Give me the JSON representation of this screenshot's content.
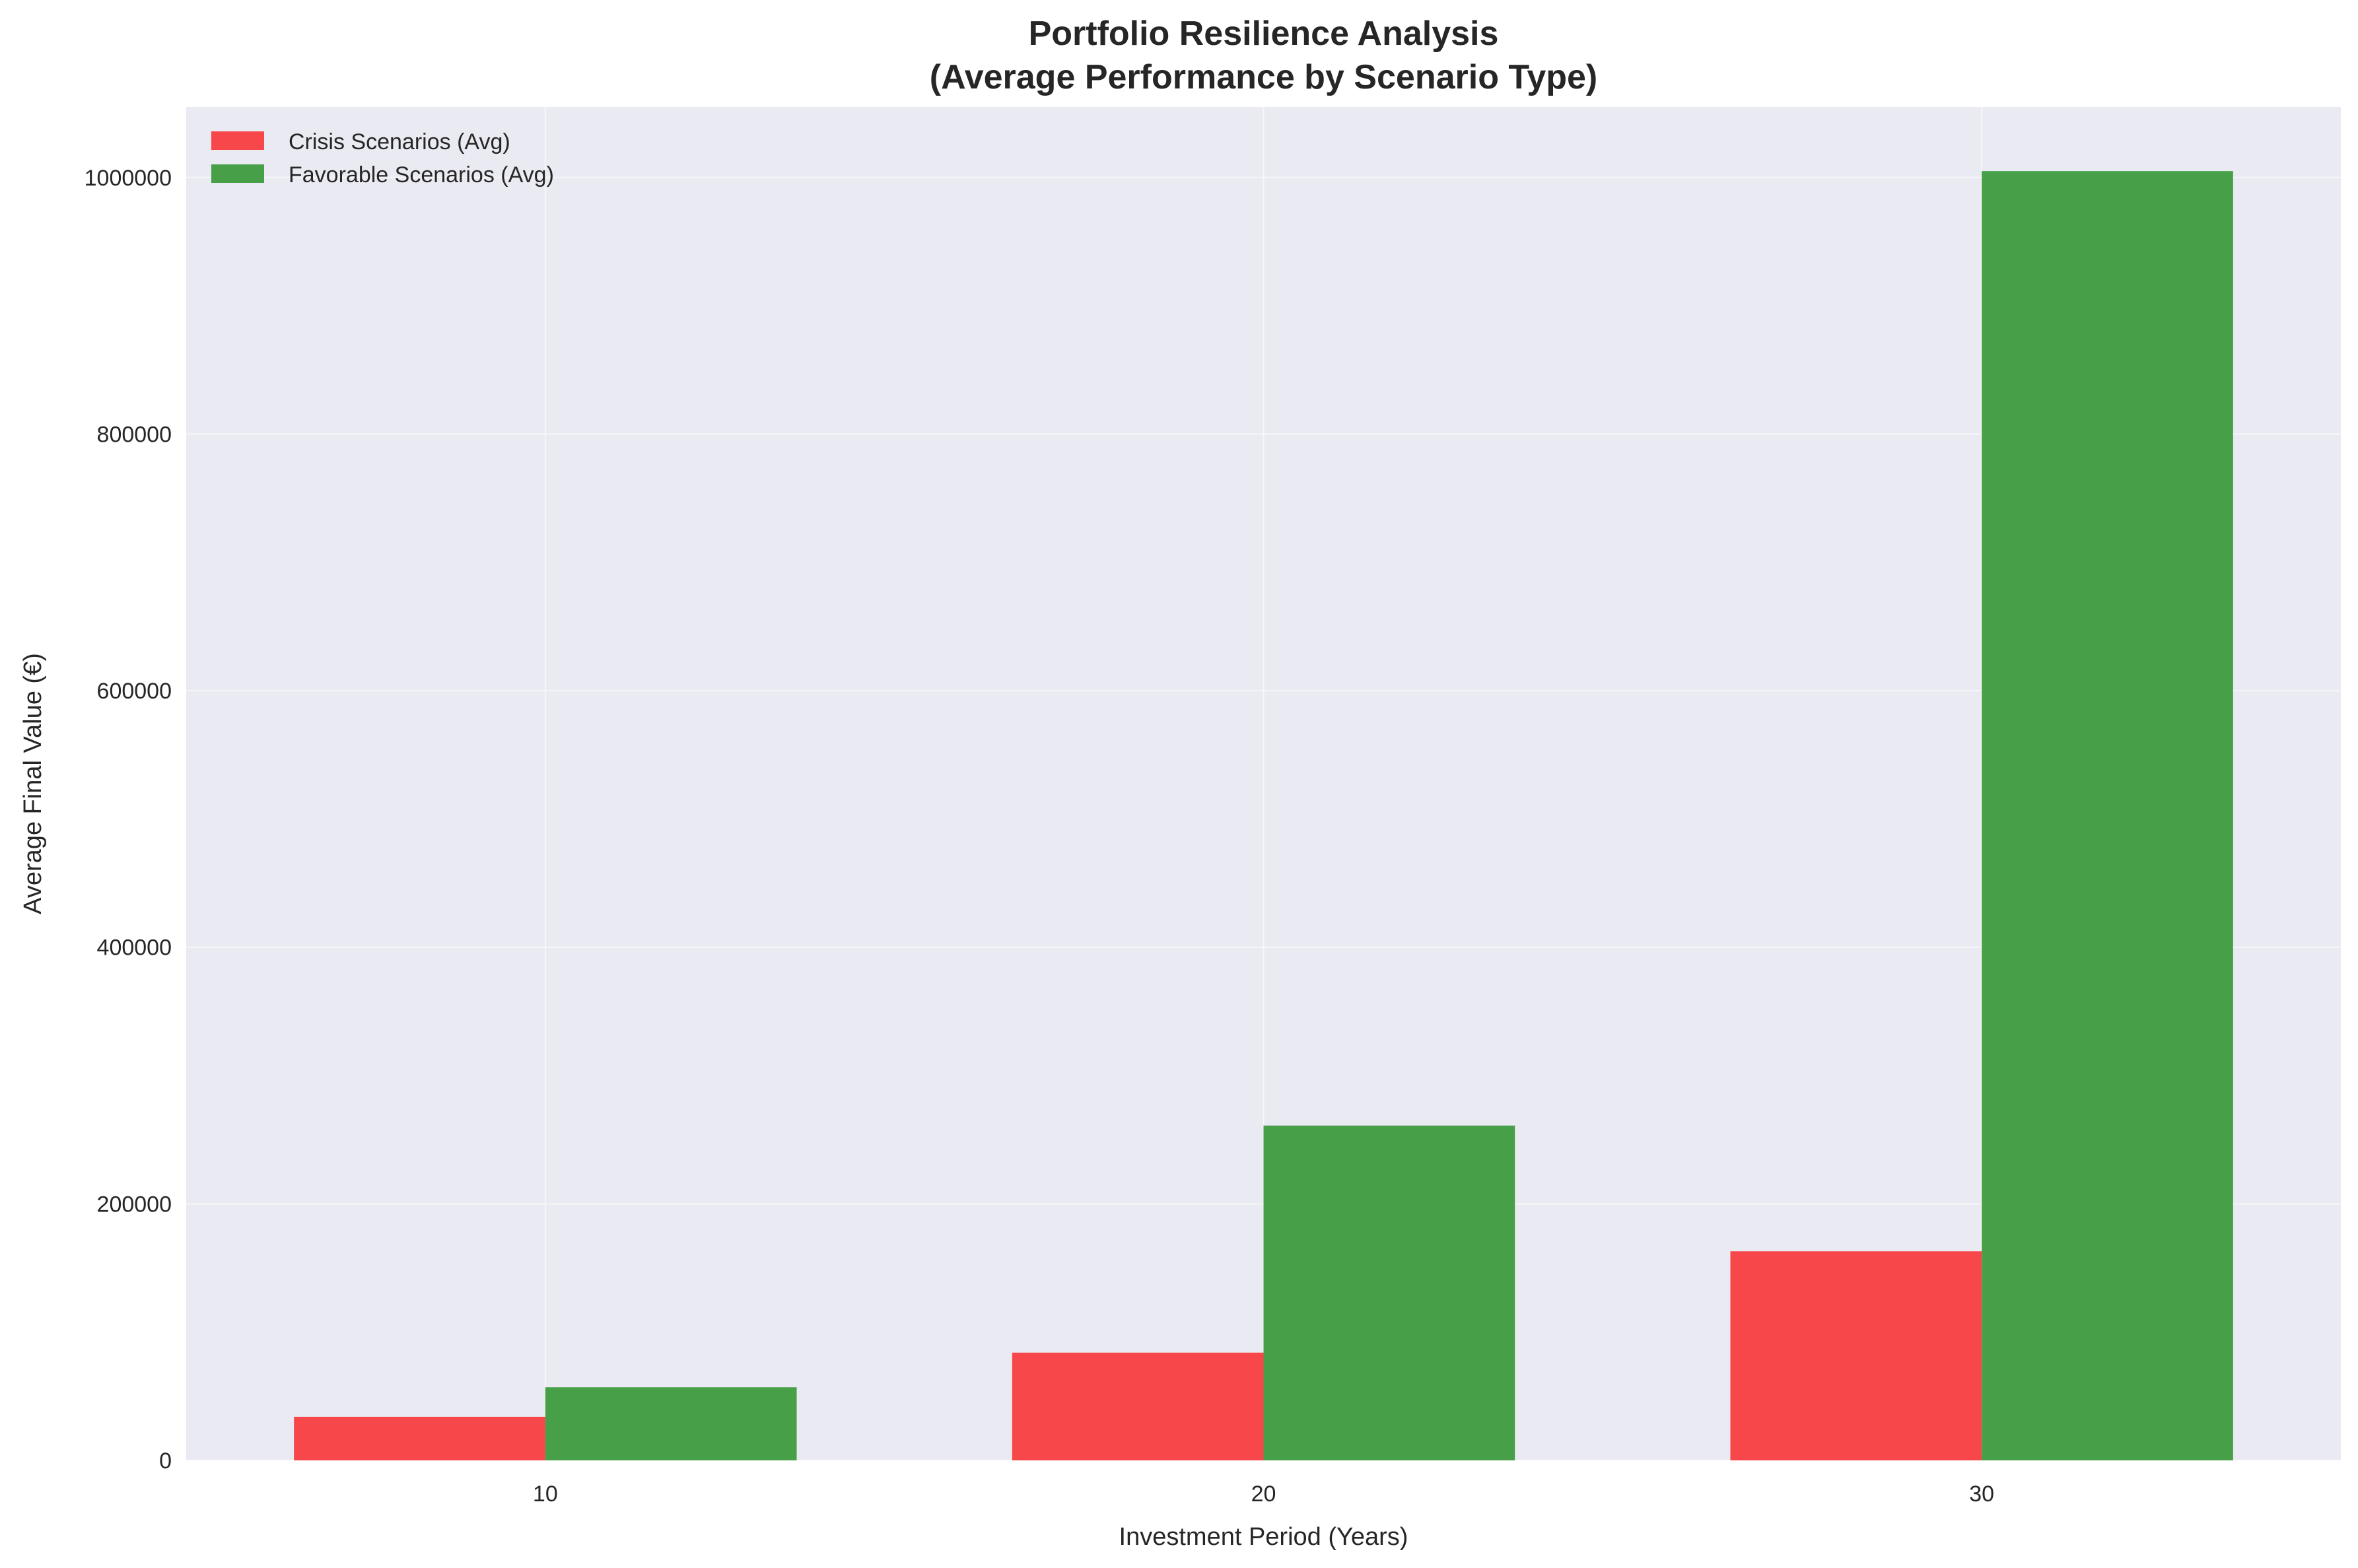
{
  "chart_data": {
    "type": "bar",
    "title": [
      "Portfolio Resilience Analysis",
      "(Average Performance by Scenario Type)"
    ],
    "xlabel": "Investment Period (Years)",
    "ylabel": "Average Final Value (€)",
    "categories": [
      "10",
      "20",
      "30"
    ],
    "series": [
      {
        "name": "Crisis Scenarios (Avg)",
        "color": "#f7474a",
        "values": [
          34000,
          84000,
          163000
        ]
      },
      {
        "name": "Favorable Scenarios (Avg)",
        "color": "#47a047",
        "values": [
          57000,
          261000,
          1005000
        ]
      }
    ],
    "ylim": [
      0,
      1055000
    ],
    "yticks": [
      0,
      200000,
      400000,
      600000,
      800000,
      1000000
    ],
    "ytick_labels": [
      "0",
      "200000",
      "400000",
      "600000",
      "800000",
      "1000000"
    ],
    "grid": true,
    "legend_position": "top-left",
    "background_color": "#eaeaf2",
    "grid_color": "#ffffff"
  }
}
